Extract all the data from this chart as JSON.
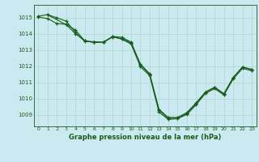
{
  "title": "",
  "xlabel": "Graphe pression niveau de la mer (hPa)",
  "ylabel": "",
  "bg_color": "#cbe9f0",
  "grid_color": "#b0d8cc",
  "line_color": "#1a5c1a",
  "ylim": [
    1008.3,
    1015.8
  ],
  "xlim": [
    -0.5,
    23.5
  ],
  "yticks": [
    1009,
    1010,
    1011,
    1012,
    1013,
    1014,
    1015
  ],
  "xticks": [
    0,
    1,
    2,
    3,
    4,
    5,
    6,
    7,
    8,
    9,
    10,
    11,
    12,
    13,
    14,
    15,
    16,
    17,
    18,
    19,
    20,
    21,
    22,
    23
  ],
  "series": [
    {
      "x": [
        0,
        1,
        2,
        3,
        4,
        5,
        6,
        7,
        8,
        9,
        10,
        11,
        12,
        13,
        14,
        15,
        16,
        17,
        18,
        19,
        20,
        21,
        22,
        23
      ],
      "y": [
        1015.1,
        1015.2,
        1015.0,
        1014.8,
        1014.1,
        1013.55,
        1013.5,
        1013.5,
        1013.85,
        1013.8,
        1013.5,
        1012.1,
        1011.5,
        1009.3,
        1008.8,
        1008.8,
        1009.1,
        1009.7,
        1010.4,
        1010.7,
        1010.3,
        1011.3,
        1011.95,
        1011.8
      ]
    },
    {
      "x": [
        0,
        1,
        2,
        3,
        4,
        5,
        6,
        7,
        8,
        9,
        10,
        11,
        12,
        13,
        14,
        15,
        16,
        17,
        18,
        19,
        20,
        21,
        22,
        23
      ],
      "y": [
        1015.05,
        1014.95,
        1014.65,
        1014.6,
        1014.25,
        1013.58,
        1013.52,
        1013.48,
        1013.82,
        1013.72,
        1013.45,
        1012.15,
        1011.55,
        1009.35,
        1008.85,
        1008.85,
        1009.15,
        1009.75,
        1010.42,
        1010.72,
        1010.32,
        1011.32,
        1011.97,
        1011.82
      ]
    },
    {
      "x": [
        1,
        3,
        4,
        5,
        6,
        7,
        8,
        9,
        10,
        11,
        12,
        13,
        14,
        15,
        16,
        17,
        18,
        19,
        20,
        21,
        22,
        23
      ],
      "y": [
        1015.18,
        1014.58,
        1014.02,
        1013.58,
        1013.48,
        1013.48,
        1013.83,
        1013.68,
        1013.38,
        1011.98,
        1011.43,
        1009.18,
        1008.73,
        1008.78,
        1009.03,
        1009.63,
        1010.33,
        1010.63,
        1010.23,
        1011.23,
        1011.88,
        1011.73
      ]
    }
  ]
}
